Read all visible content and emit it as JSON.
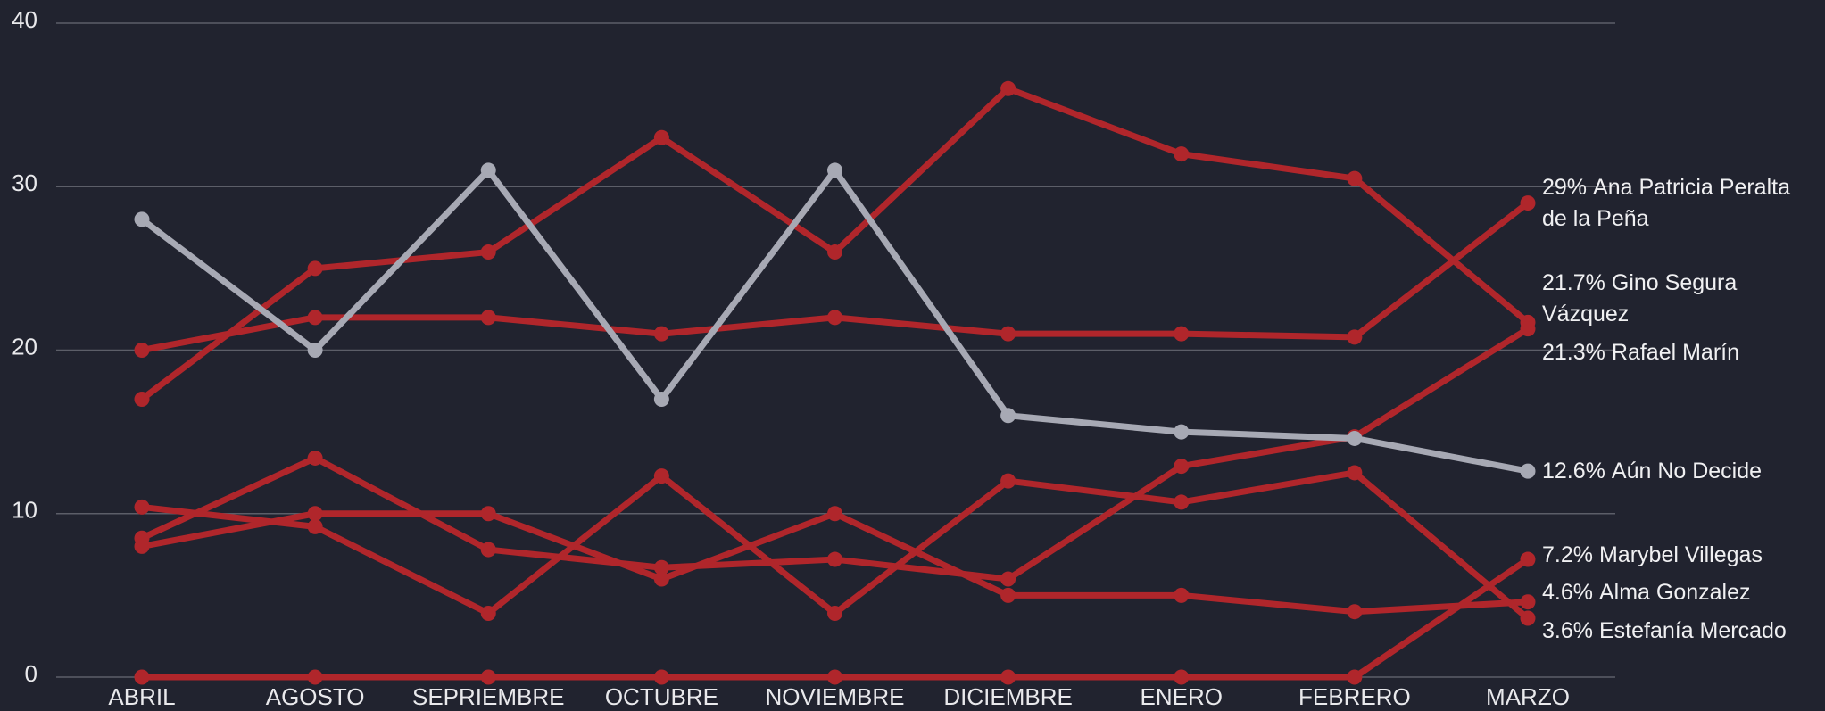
{
  "chart_data": {
    "type": "line",
    "categories": [
      "ABRIL",
      "AGOSTO",
      "SEPRIEMBRE",
      "OCTUBRE",
      "NOVIEMBRE",
      "DICIEMBRE",
      "ENERO",
      "FEBRERO",
      "MARZO"
    ],
    "ylim": [
      0,
      40
    ],
    "yticks": [
      0,
      10,
      20,
      30,
      40
    ],
    "grid": true,
    "series": [
      {
        "name": "Ana Patricia Peralta de la Peña",
        "color": "#b0262b",
        "values": [
          20,
          22,
          22,
          21,
          22,
          21,
          21,
          20.8,
          29
        ],
        "value_labels": [
          null,
          null,
          null,
          null,
          null,
          null,
          null,
          null,
          "29%"
        ]
      },
      {
        "name": "Gino Segura Vázquez",
        "color": "#b0262b",
        "values": [
          17,
          25,
          26,
          33,
          26,
          36,
          32,
          30.5,
          21.7
        ],
        "value_labels": [
          null,
          null,
          null,
          null,
          null,
          null,
          null,
          null,
          "21.7%"
        ]
      },
      {
        "name": "Rafael Marín",
        "color": "#b0262b",
        "values": [
          8.5,
          13.4,
          7.8,
          6.7,
          7.2,
          6,
          12.9,
          14.7,
          21.3
        ],
        "value_labels": [
          null,
          null,
          null,
          null,
          null,
          null,
          null,
          null,
          "21.3%"
        ]
      },
      {
        "name": "Aún No Decide",
        "color": "#a7a9b4",
        "values": [
          28,
          20,
          31,
          17,
          31,
          16,
          15,
          14.6,
          12.6
        ],
        "value_labels": [
          null,
          null,
          null,
          null,
          null,
          null,
          null,
          null,
          "12.6%"
        ]
      },
      {
        "name": "Marybel Villegas",
        "color": "#b0262b",
        "values": [
          0,
          0,
          0,
          0,
          0,
          0,
          0,
          0,
          7.2
        ],
        "value_labels": [
          null,
          null,
          null,
          null,
          null,
          null,
          null,
          null,
          "7.2%"
        ]
      },
      {
        "name": "Alma Gonzalez",
        "color": "#b0262b",
        "values": [
          8,
          10,
          10,
          6,
          10,
          5,
          5,
          4,
          4.6
        ],
        "value_labels": [
          null,
          null,
          null,
          null,
          null,
          null,
          null,
          null,
          "4.6%"
        ]
      },
      {
        "name": "Estefanía Mercado",
        "color": "#b0262b",
        "values": [
          10.4,
          9.2,
          3.9,
          12.3,
          3.9,
          12,
          10.7,
          12.5,
          3.6
        ],
        "value_labels": [
          null,
          null,
          null,
          null,
          null,
          null,
          null,
          null,
          "3.6%"
        ]
      }
    ]
  }
}
